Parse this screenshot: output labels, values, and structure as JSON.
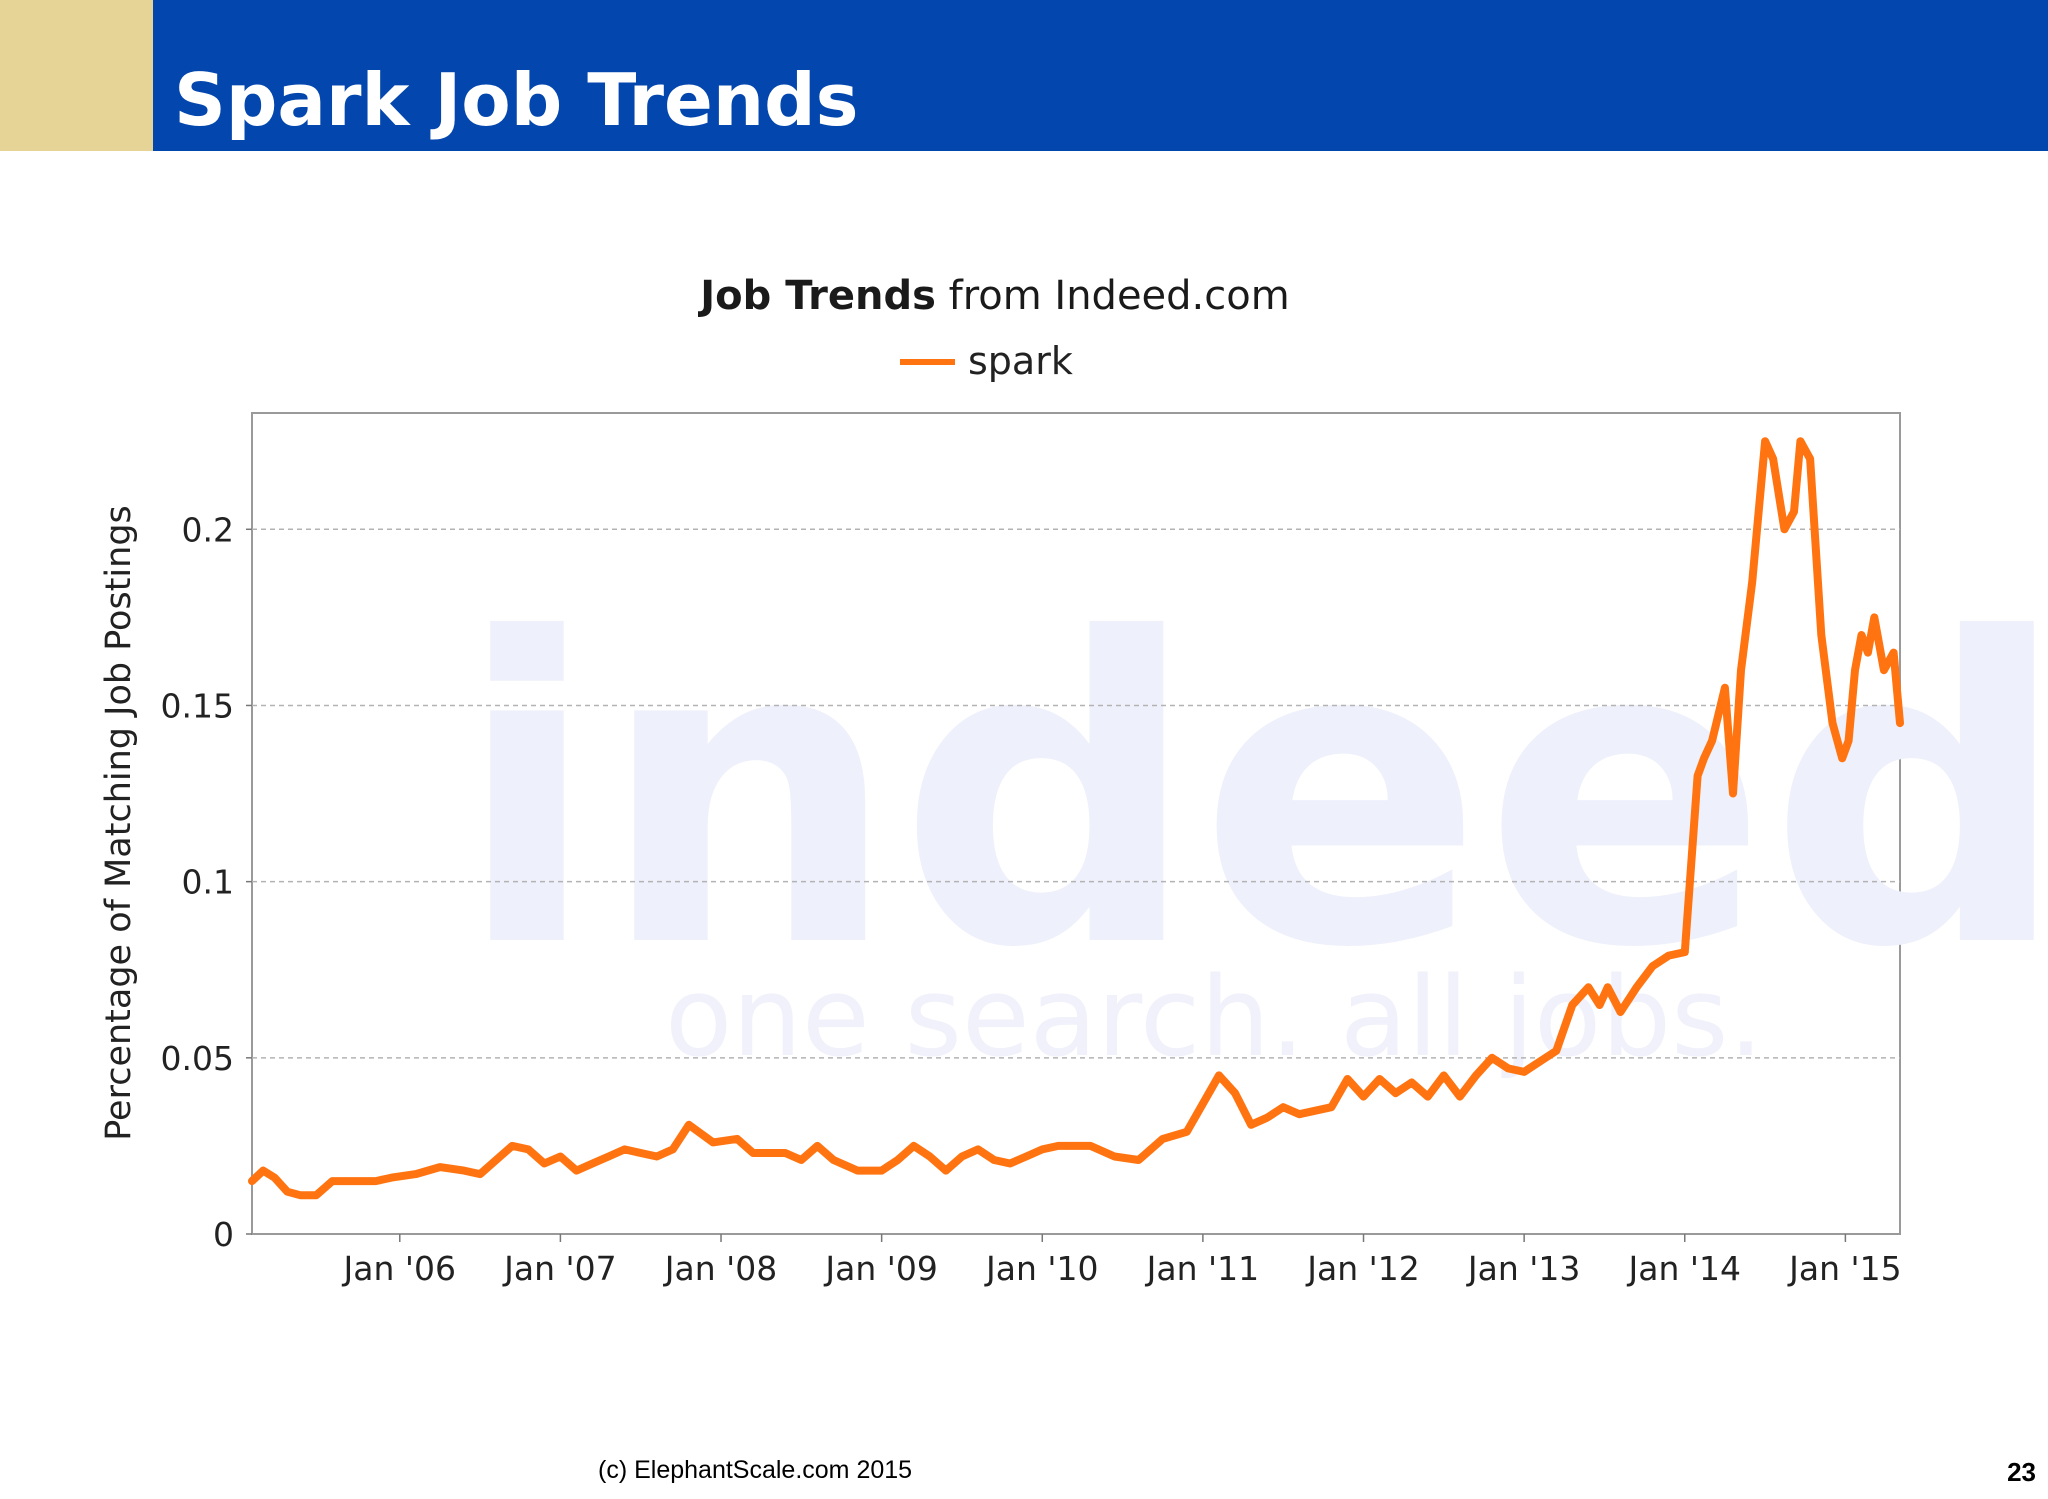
{
  "slide": {
    "title": "Spark Job Trends",
    "footer": "(c) ElephantScale.com  2015",
    "page_number": "23"
  },
  "colors": {
    "title_bar": "#0346ad",
    "accent_block": "#e6d497",
    "series_line": "#ff7410",
    "gridline": "#b3b3b3"
  },
  "chart_data": {
    "type": "line",
    "title_bold": "Job Trends",
    "title_rest": " from Indeed.com",
    "ylabel": "Percentage of Matching Job Postings",
    "xlabel": "",
    "ylim": [
      0,
      0.233
    ],
    "xlim": [
      2005.08,
      2015.34
    ],
    "y_ticks": [
      0,
      0.05,
      0.1,
      0.15,
      0.2
    ],
    "y_tick_labels": [
      "0",
      "0.05",
      "0.1",
      "0.15",
      "0.2"
    ],
    "x_ticks": [
      2006,
      2007,
      2008,
      2009,
      2010,
      2011,
      2012,
      2013,
      2014,
      2015
    ],
    "x_tick_labels": [
      "Jan '06",
      "Jan '07",
      "Jan '08",
      "Jan '09",
      "Jan '10",
      "Jan '11",
      "Jan '12",
      "Jan '13",
      "Jan '14",
      "Jan '15"
    ],
    "grid": true,
    "legend_position": "top-center",
    "watermark_text": [
      "indeed",
      "one search. all jobs."
    ],
    "series": [
      {
        "name": "spark",
        "color": "#ff7410",
        "x": [
          2005.08,
          2005.15,
          2005.22,
          2005.3,
          2005.38,
          2005.48,
          2005.58,
          2005.66,
          2005.75,
          2005.85,
          2005.95,
          2006.1,
          2006.25,
          2006.4,
          2006.5,
          2006.6,
          2006.7,
          2006.8,
          2006.9,
          2007.0,
          2007.1,
          2007.2,
          2007.3,
          2007.4,
          2007.5,
          2007.6,
          2007.7,
          2007.8,
          2007.95,
          2008.1,
          2008.2,
          2008.3,
          2008.4,
          2008.5,
          2008.6,
          2008.7,
          2008.85,
          2009.0,
          2009.1,
          2009.2,
          2009.3,
          2009.4,
          2009.5,
          2009.6,
          2009.7,
          2009.8,
          2009.9,
          2010.0,
          2010.1,
          2010.2,
          2010.3,
          2010.45,
          2010.6,
          2010.75,
          2010.9,
          2011.0,
          2011.1,
          2011.2,
          2011.3,
          2011.4,
          2011.5,
          2011.6,
          2011.7,
          2011.8,
          2011.9,
          2012.0,
          2012.1,
          2012.2,
          2012.3,
          2012.4,
          2012.5,
          2012.6,
          2012.7,
          2012.8,
          2012.9,
          2013.0,
          2013.1,
          2013.2,
          2013.3,
          2013.4,
          2013.47,
          2013.52,
          2013.6,
          2013.7,
          2013.8,
          2013.9,
          2014.0,
          2014.08,
          2014.12,
          2014.17,
          2014.25,
          2014.3,
          2014.35,
          2014.42,
          2014.5,
          2014.55,
          2014.62,
          2014.68,
          2014.72,
          2014.78,
          2014.85,
          2014.92,
          2014.98,
          2015.02,
          2015.06,
          2015.1,
          2015.14,
          2015.18,
          2015.24,
          2015.3,
          2015.34
        ],
        "values": [
          0.015,
          0.018,
          0.016,
          0.012,
          0.011,
          0.011,
          0.015,
          0.015,
          0.015,
          0.015,
          0.016,
          0.017,
          0.019,
          0.018,
          0.017,
          0.021,
          0.025,
          0.024,
          0.02,
          0.022,
          0.018,
          0.02,
          0.022,
          0.024,
          0.023,
          0.022,
          0.024,
          0.031,
          0.026,
          0.027,
          0.023,
          0.023,
          0.023,
          0.021,
          0.025,
          0.021,
          0.018,
          0.018,
          0.021,
          0.025,
          0.022,
          0.018,
          0.022,
          0.024,
          0.021,
          0.02,
          0.022,
          0.024,
          0.025,
          0.025,
          0.025,
          0.022,
          0.021,
          0.027,
          0.029,
          0.037,
          0.045,
          0.04,
          0.031,
          0.033,
          0.036,
          0.034,
          0.035,
          0.036,
          0.044,
          0.039,
          0.044,
          0.04,
          0.043,
          0.039,
          0.045,
          0.039,
          0.045,
          0.05,
          0.047,
          0.046,
          0.049,
          0.052,
          0.065,
          0.07,
          0.065,
          0.07,
          0.063,
          0.07,
          0.076,
          0.079,
          0.08,
          0.13,
          0.135,
          0.14,
          0.155,
          0.125,
          0.16,
          0.185,
          0.225,
          0.22,
          0.2,
          0.205,
          0.225,
          0.22,
          0.17,
          0.145,
          0.135,
          0.14,
          0.16,
          0.17,
          0.165,
          0.175,
          0.16,
          0.165,
          0.145
        ]
      }
    ]
  }
}
